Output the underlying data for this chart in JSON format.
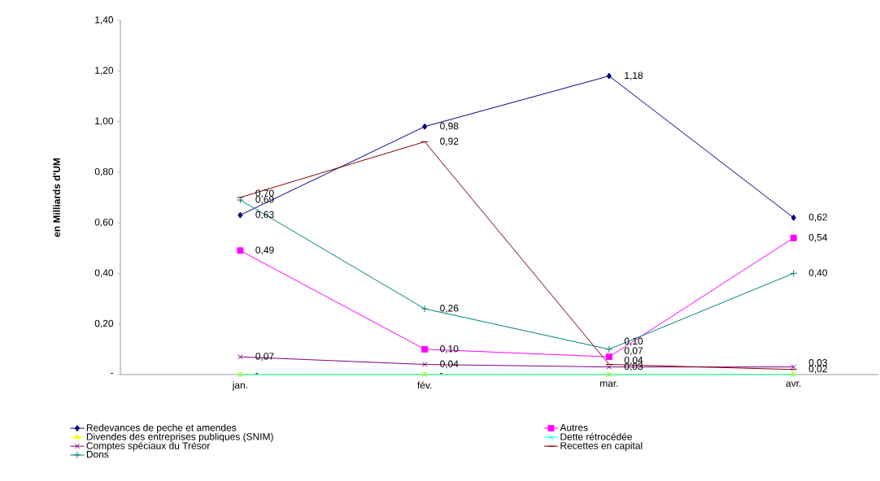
{
  "chart_data": {
    "type": "line",
    "categories": [
      "jan.",
      "fév.",
      "mar.",
      "avr."
    ],
    "ylabel": "en Milliards d'UM",
    "ylim": [
      0,
      1.4
    ],
    "yticks": [
      {
        "value": 0,
        "label": "-"
      },
      {
        "value": 0.2,
        "label": "0,20"
      },
      {
        "value": 0.4,
        "label": "0,40"
      },
      {
        "value": 0.6,
        "label": "0,60"
      },
      {
        "value": 0.8,
        "label": "0,80"
      },
      {
        "value": 1.0,
        "label": "1,00"
      },
      {
        "value": 1.2,
        "label": "1,20"
      },
      {
        "value": 1.4,
        "label": "1,40"
      }
    ],
    "legend": "bottom",
    "series": [
      {
        "name": "Redevances de peche et amendes",
        "color": "#000080",
        "marker": "diamond",
        "values": [
          0.63,
          0.98,
          1.18,
          0.62
        ],
        "value_labels": [
          "0,63",
          "0,98",
          "1,18",
          "0,62"
        ]
      },
      {
        "name": "Autres",
        "color": "#ff00ff",
        "marker": "square",
        "values": [
          0.49,
          0.1,
          0.07,
          0.54
        ],
        "value_labels": [
          "0,49",
          "0,10",
          "0,07",
          "0,54"
        ]
      },
      {
        "name": "Divendes des entreprises publiques (SNIM)",
        "color": "#ffff00",
        "marker": "triangle",
        "values": [
          0,
          0,
          0,
          0
        ],
        "value_labels": [
          "-",
          "-",
          null,
          null
        ]
      },
      {
        "name": "Dette rétrocédée",
        "color": "#00ffff",
        "marker": "cross",
        "values": [
          0,
          0,
          0,
          0
        ]
      },
      {
        "name": "Comptes spéciaux du Trésor",
        "color": "#800080",
        "marker": "cross",
        "values": [
          0.07,
          0.04,
          0.03,
          0.03
        ],
        "value_labels": [
          "0,07",
          "0,04",
          "0,03",
          "0,03"
        ]
      },
      {
        "name": "Recettes en capital",
        "color": "#800000",
        "values": [
          0.7,
          0.92,
          0.04,
          0.02
        ],
        "value_labels": [
          "0,70",
          "0,92",
          "0,04",
          "0,02"
        ]
      },
      {
        "name": "Dons",
        "color": "#008080",
        "marker": "plus",
        "values": [
          0.69,
          0.26,
          0.1,
          0.4
        ],
        "value_labels": [
          "0,69",
          "0,26",
          "0,10",
          "0,40"
        ]
      }
    ]
  }
}
